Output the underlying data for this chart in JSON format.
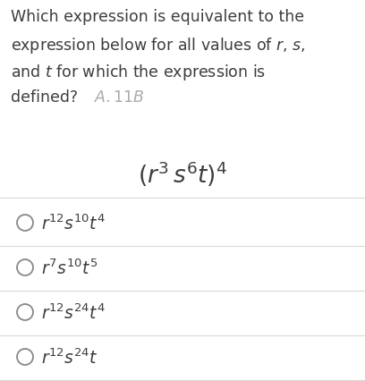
{
  "title_lines": [
    "Which expression is equivalent to the",
    "expression below for all values of $r$, $s$,",
    "and $t$ for which the expression is",
    "defined?"
  ],
  "a11b_label": "$A.11B$",
  "main_expr": "$(r^3 s^6 t)^4$",
  "options": [
    "$r^{12} s^{10} t^4$",
    "$r^7 s^{10} t^5$",
    "$r^{12} s^{24} t^4$",
    "$r^{12} s^{24} t$"
  ],
  "bg_color": "#ffffff",
  "text_color": "#3d3d3d",
  "a11b_color": "#aaaaaa",
  "expr_color": "#3d3d3d",
  "option_color": "#3d3d3d",
  "circle_color": "#888888",
  "separator_color": "#d8d8d8",
  "title_fontsize": 12.5,
  "option_fontsize": 13.5,
  "expr_fontsize": 19
}
